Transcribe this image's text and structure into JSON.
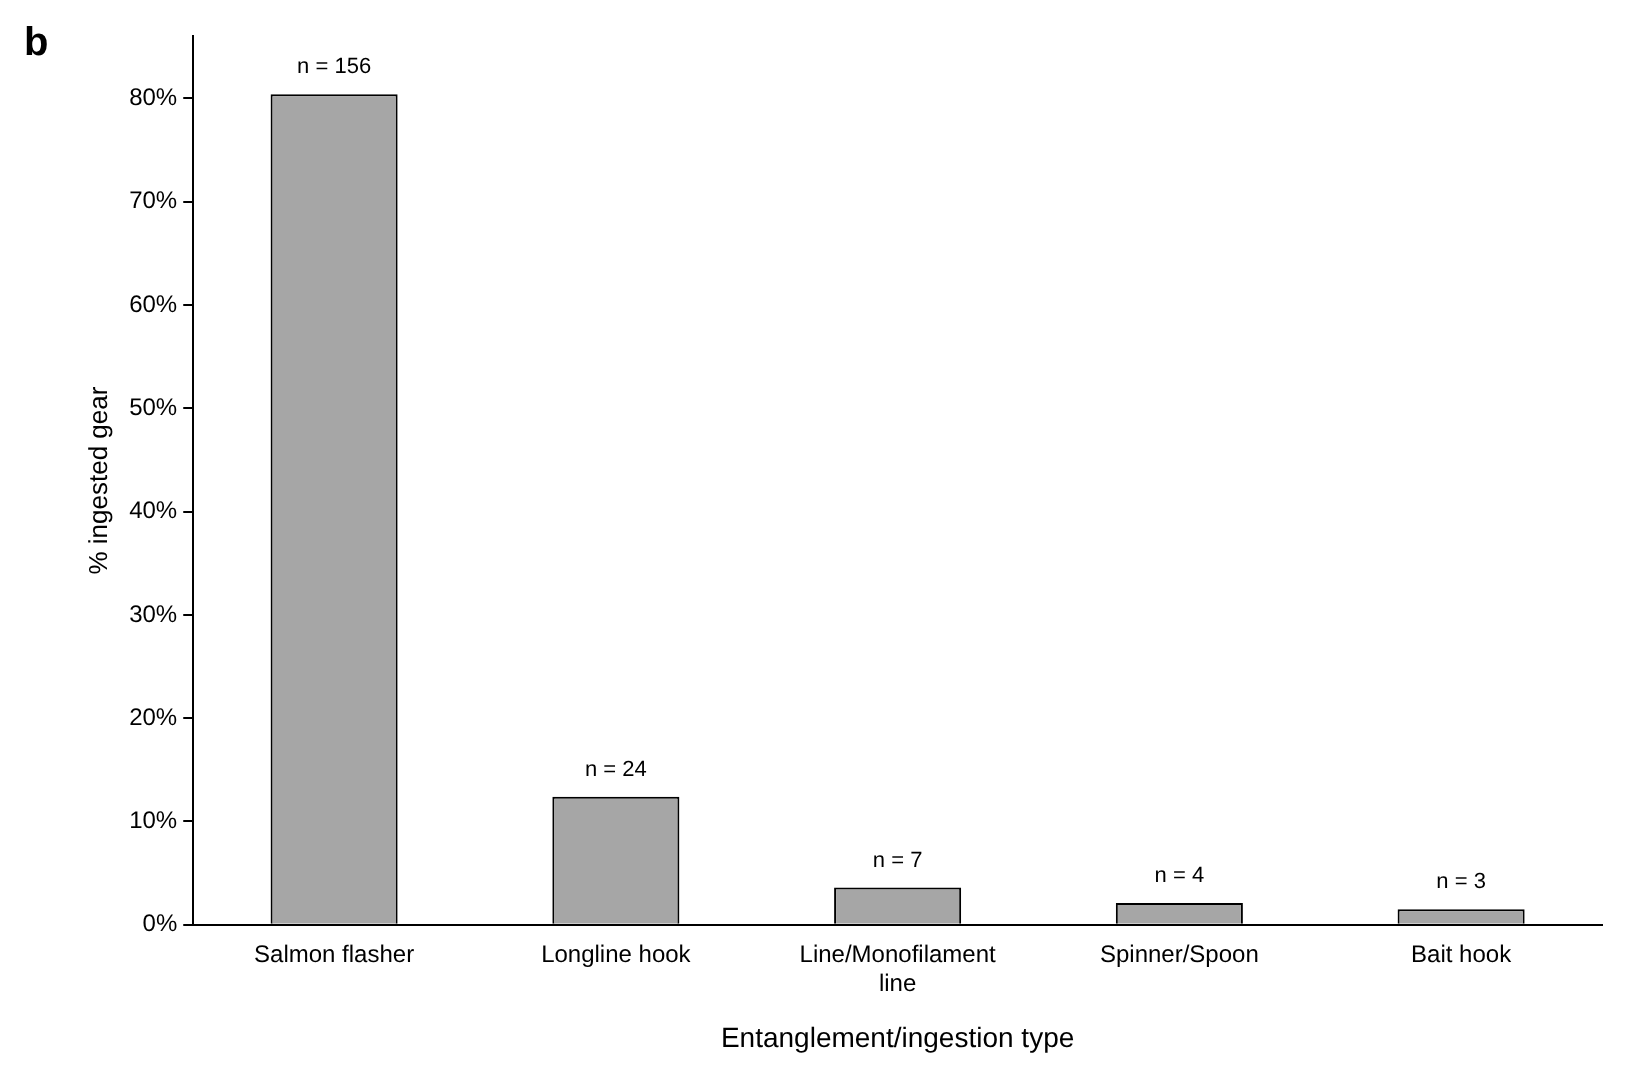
{
  "chart_data": {
    "type": "bar",
    "xlabel": "Entanglement/ingestion type",
    "ylabel": "% ingested gear",
    "annotations": [
      "b",
      {
        "text": "n = 156",
        "x": "Salmon flasher",
        "y": 80.4
      },
      {
        "text": "n = 24",
        "x": "Longline hook",
        "y": 12.4
      },
      {
        "text": "n = 7",
        "x": "Line/Monofilament line",
        "y": 3.6
      },
      {
        "text": "n = 4",
        "x": "Spinner/Spoon",
        "y": 2.1
      },
      {
        "text": "n = 3",
        "x": "Bait hook",
        "y": 1.5
      }
    ],
    "categories": [
      "Salmon flasher",
      "Longline hook",
      "Line/Monofilament line",
      "Spinner/Spoon",
      "Bait hook"
    ],
    "values": [
      80.4,
      12.4,
      3.6,
      2.1,
      1.5
    ],
    "color": "#a6a6a6",
    "ylim": [
      0,
      86
    ],
    "yticks": [
      {
        "value": 0,
        "label": "0%"
      },
      {
        "value": 10,
        "label": "10%"
      },
      {
        "value": 20,
        "label": "20%"
      },
      {
        "value": 30,
        "label": "30%"
      },
      {
        "value": 40,
        "label": "40%"
      },
      {
        "value": 50,
        "label": "50%"
      },
      {
        "value": 60,
        "label": "60%"
      },
      {
        "value": 70,
        "label": "70%"
      },
      {
        "value": 80,
        "label": "80%"
      }
    ],
    "grid": false,
    "legend": false
  }
}
